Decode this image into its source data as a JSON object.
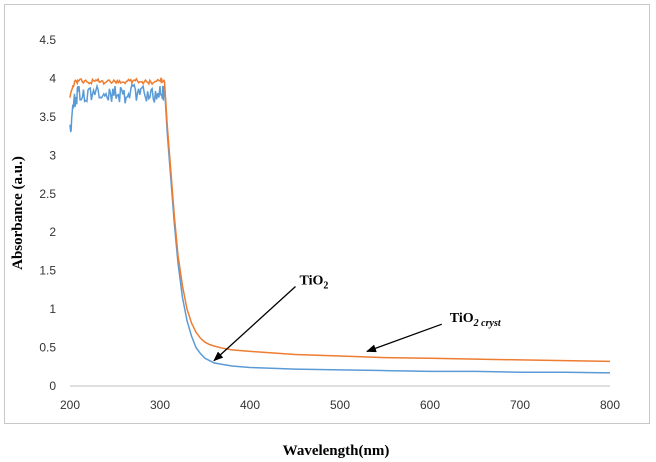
{
  "chart_data": {
    "type": "line",
    "xlabel": "Wavelength(nm)",
    "ylabel": "Absorbance (a.u.)",
    "xlim": [
      200,
      800
    ],
    "ylim": [
      0,
      4.5
    ],
    "x_ticks": [
      "200",
      "300",
      "400",
      "500",
      "600",
      "700",
      "800"
    ],
    "y_ticks": [
      "0",
      "0.5",
      "1",
      "1.5",
      "2",
      "2.5",
      "3",
      "3.5",
      "4",
      "4.5"
    ],
    "grid": false,
    "legend": "none",
    "series": [
      {
        "color": "#5b9bd5",
        "x": [
          200,
          205,
          210,
          220,
          230,
          240,
          250,
          260,
          270,
          280,
          290,
          300,
          305,
          308,
          312,
          316,
          320,
          325,
          330,
          335,
          340,
          345,
          350,
          355,
          360,
          370,
          380,
          400,
          450,
          500,
          550,
          600,
          650,
          700,
          750,
          800
        ],
        "y": [
          3.4,
          3.8,
          3.9,
          3.85,
          3.9,
          3.8,
          3.9,
          3.85,
          3.9,
          3.88,
          3.85,
          3.9,
          3.9,
          3.3,
          2.7,
          2.1,
          1.6,
          1.15,
          0.85,
          0.65,
          0.5,
          0.42,
          0.36,
          0.33,
          0.3,
          0.28,
          0.26,
          0.24,
          0.22,
          0.21,
          0.2,
          0.19,
          0.19,
          0.18,
          0.18,
          0.17
        ]
      },
      {
        "color": "#ed7d31",
        "x": [
          200,
          205,
          210,
          220,
          230,
          240,
          250,
          260,
          270,
          280,
          290,
          300,
          305,
          308,
          312,
          316,
          320,
          325,
          330,
          335,
          340,
          345,
          350,
          355,
          360,
          370,
          380,
          400,
          450,
          500,
          550,
          600,
          650,
          700,
          750,
          800
        ],
        "y": [
          3.75,
          3.95,
          3.97,
          3.95,
          3.97,
          3.95,
          3.96,
          3.95,
          3.97,
          3.96,
          3.95,
          3.97,
          3.96,
          3.4,
          2.8,
          2.2,
          1.7,
          1.3,
          1.0,
          0.82,
          0.7,
          0.62,
          0.57,
          0.54,
          0.52,
          0.49,
          0.47,
          0.45,
          0.41,
          0.39,
          0.37,
          0.36,
          0.35,
          0.34,
          0.33,
          0.32
        ]
      }
    ],
    "annotations": [
      {
        "text": "TiO",
        "sub": "2",
        "x": 455,
        "y": 1.32,
        "arrow_to": [
          360,
          0.33
        ]
      },
      {
        "text": "TiO",
        "sub": "2 cryst",
        "x": 622,
        "y": 0.83,
        "arrow_to": [
          530,
          0.45
        ]
      }
    ]
  }
}
